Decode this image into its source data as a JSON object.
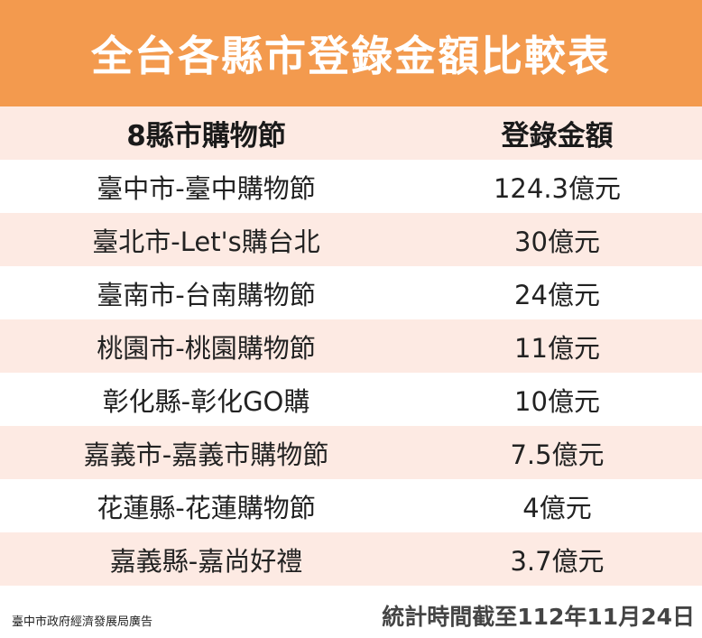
{
  "title": "全台各縣市登錄金額比較表",
  "table": {
    "headers": {
      "name": "8縣市購物節",
      "amount": "登錄金額"
    },
    "rows": [
      {
        "name": "臺中市-臺中購物節",
        "amount": "124.3億元"
      },
      {
        "name": "臺北市-Let's購台北",
        "amount": "30億元"
      },
      {
        "name": "臺南市-台南購物節",
        "amount": "24億元"
      },
      {
        "name": "桃園市-桃園購物節",
        "amount": "11億元"
      },
      {
        "name": "彰化縣-彰化GO購",
        "amount": "10億元"
      },
      {
        "name": "嘉義市-嘉義市購物節",
        "amount": "7.5億元"
      },
      {
        "name": "花蓮縣-花蓮購物節",
        "amount": "4億元"
      },
      {
        "name": "嘉義縣-嘉尚好禮",
        "amount": "3.7億元"
      }
    ]
  },
  "footer": {
    "source": "臺中市政府經濟發展局廣告",
    "date_note": "統計時間截至112年11月24日"
  },
  "colors": {
    "title_bg": "#f39a4e",
    "row_alt_bg": "#fdeae3"
  }
}
